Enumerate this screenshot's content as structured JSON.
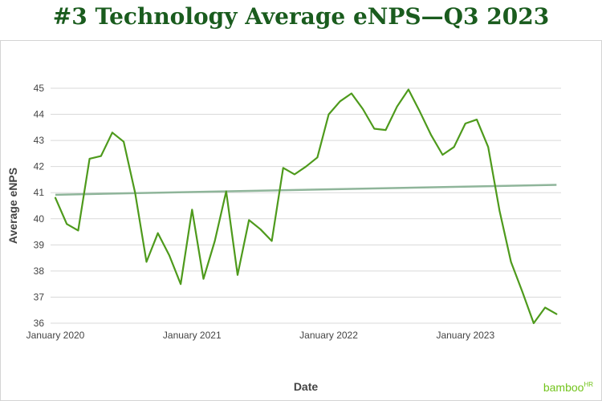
{
  "title": "#3 Technology Average eNPS—Q3 2023",
  "brand": "bamboo",
  "brand_sup": "HR",
  "colors": {
    "title": "#1a5c1e",
    "series": "#4e9a1c",
    "trend": "#8fb59a",
    "grid": "#d9d9d9",
    "brand": "#73c41d"
  },
  "chart_data": {
    "type": "line",
    "xlabel": "Date",
    "ylabel": "Average eNPS",
    "x_unit": "month",
    "x_start": "2020-01",
    "ylim": [
      36,
      45
    ],
    "yticks": [
      36,
      37,
      38,
      39,
      40,
      41,
      42,
      43,
      44,
      45
    ],
    "xticks": [
      {
        "label": "January 2020",
        "date": "2020-01"
      },
      {
        "label": "January 2021",
        "date": "2021-01"
      },
      {
        "label": "January 2022",
        "date": "2022-01"
      },
      {
        "label": "January 2023",
        "date": "2023-01"
      }
    ],
    "grid": "horizontal",
    "series": [
      {
        "x": [
          "2020-01",
          "2020-02",
          "2020-03",
          "2020-04",
          "2020-05",
          "2020-06",
          "2020-07",
          "2020-08",
          "2020-09",
          "2020-10",
          "2020-11",
          "2020-12",
          "2021-01",
          "2021-02",
          "2021-03",
          "2021-04",
          "2021-05",
          "2021-06",
          "2021-07",
          "2021-08",
          "2021-09",
          "2021-10",
          "2021-11",
          "2021-12",
          "2022-01",
          "2022-02",
          "2022-03",
          "2022-04",
          "2022-05",
          "2022-06",
          "2022-07",
          "2022-08",
          "2022-09",
          "2022-10",
          "2022-11",
          "2022-12",
          "2023-01",
          "2023-02",
          "2023-03",
          "2023-04",
          "2023-05",
          "2023-06",
          "2023-07",
          "2023-08",
          "2023-09"
        ],
        "values": [
          40.8,
          39.8,
          39.55,
          42.3,
          42.4,
          43.3,
          42.95,
          41.0,
          38.35,
          39.45,
          38.6,
          37.5,
          40.35,
          37.7,
          39.15,
          41.05,
          37.85,
          39.95,
          39.6,
          39.15,
          41.95,
          41.7,
          42.0,
          42.35,
          44.0,
          44.5,
          44.8,
          44.2,
          43.45,
          43.4,
          44.3,
          44.95,
          44.1,
          43.2,
          42.45,
          42.75,
          43.65,
          43.8,
          42.75,
          40.3,
          38.35,
          37.2,
          36.0,
          36.6,
          36.35
        ]
      }
    ],
    "trendline": {
      "start": 40.92,
      "end": 41.3
    }
  }
}
